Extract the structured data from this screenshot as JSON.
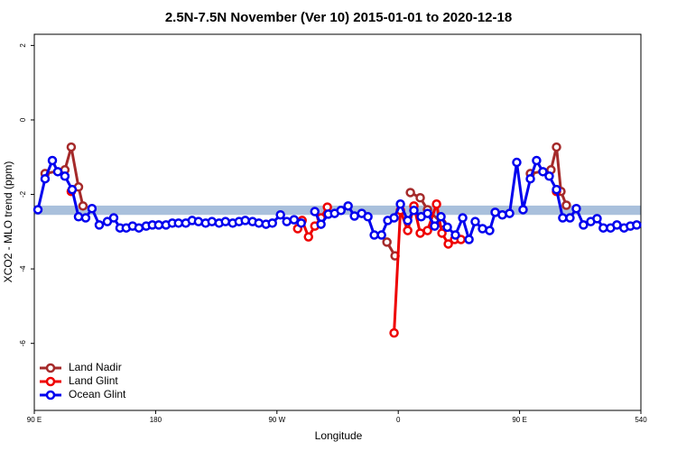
{
  "chart_data": {
    "type": "line",
    "title": "2.5N-7.5N November (Ver 10)   2015-01-01 to 2020-12-18",
    "x_label": "Longitude",
    "y_label": "XCO2 - MLO trend (ppm)",
    "xlim": [
      90,
      540
    ],
    "ylim": [
      -7.8,
      2.3
    ],
    "xticks": [
      {
        "value": 90,
        "label": "90 E"
      },
      180,
      {
        "value": 270,
        "label": "90 W"
      },
      {
        "value": 360,
        "label": "0"
      },
      {
        "value": 450,
        "label": "90 E"
      },
      540
    ],
    "yticks": [
      2,
      0,
      -2,
      -4,
      -6
    ],
    "band": {
      "range": [
        -2.55,
        -2.3
      ],
      "color": "#a9c0dc"
    },
    "legend": "bottom-left",
    "series": [
      {
        "name": "Land Nadir",
        "color": "#a52a2a",
        "x": [
          98,
          112.7,
          117.4,
          122.8,
          126.1,
          300,
          351.6,
          357.6,
          362,
          369,
          376.3,
          381.7,
          392.4,
          440,
          458,
          473.3,
          477.4,
          480.7,
          484.7
        ],
        "values": [
          -1.44,
          -1.34,
          -0.73,
          -1.8,
          -2.31,
          null,
          -3.28,
          -3.65,
          null,
          -1.95,
          -2.09,
          -2.41,
          -2.77,
          null,
          -1.44,
          -1.34,
          -0.73,
          -1.92,
          -2.29
        ]
      },
      {
        "name": "Land Glint",
        "color": "#ee0000",
        "x": [
          117.4,
          200,
          285.4,
          288.7,
          293.4,
          298.1,
          302.7,
          307.4,
          330,
          356.9,
          361.6,
          367,
          371.6,
          376.3,
          381.7,
          388.4,
          392.4,
          397.1,
          401.8,
          406.5,
          440,
          477.4
        ],
        "values": [
          -1.92,
          null,
          -2.92,
          -2.7,
          -3.14,
          -2.85,
          -2.63,
          -2.34,
          null,
          -5.72,
          -2.43,
          -2.97,
          -2.31,
          -3.04,
          -2.97,
          -2.26,
          -3.04,
          -3.33,
          -3.21,
          -3.21,
          null,
          -1.92
        ]
      },
      {
        "name": "Ocean Glint",
        "color": "#0000ee",
        "x": [
          92.7,
          98,
          103.4,
          107.4,
          112.7,
          118.1,
          122.8,
          128.1,
          132.8,
          138.2,
          144.2,
          148.9,
          153.6,
          158.2,
          162.9,
          167.6,
          173,
          177.6,
          182.3,
          187.7,
          192.4,
          197,
          202.4,
          207.1,
          211.8,
          217.1,
          221.8,
          227.1,
          231.8,
          237.2,
          241.9,
          246.5,
          251.9,
          256.6,
          261.9,
          266.6,
          272.6,
          277.3,
          282.7,
          288,
          293,
          298.1,
          302.7,
          308.1,
          312.8,
          317.5,
          322.8,
          327.5,
          332.9,
          337.5,
          342.2,
          347.6,
          352.2,
          356.9,
          361.6,
          367,
          371.6,
          377,
          381.7,
          387,
          391.7,
          396.4,
          402.4,
          407.8,
          412.5,
          417.1,
          422.5,
          427.8,
          431.9,
          437.2,
          442.6,
          447.9,
          452.6,
          458,
          462.6,
          467.3,
          472,
          477.4,
          482,
          487.4,
          492.1,
          497.4,
          502.8,
          507.5,
          512.1,
          517.5,
          522.2,
          527.5,
          532.2,
          536.9
        ],
        "values": [
          -2.41,
          -1.58,
          -1.09,
          -1.39,
          -1.51,
          -1.87,
          -2.6,
          -2.63,
          -2.38,
          -2.82,
          -2.73,
          -2.63,
          -2.9,
          -2.9,
          -2.85,
          -2.9,
          -2.85,
          -2.82,
          -2.82,
          -2.82,
          -2.77,
          -2.77,
          -2.77,
          -2.7,
          -2.73,
          -2.77,
          -2.73,
          -2.77,
          -2.73,
          -2.77,
          -2.73,
          -2.7,
          -2.73,
          -2.77,
          -2.8,
          -2.77,
          -2.55,
          -2.73,
          -2.68,
          -2.77,
          null,
          -2.46,
          -2.8,
          -2.53,
          -2.51,
          -2.43,
          -2.31,
          -2.58,
          -2.51,
          -2.6,
          -3.09,
          -3.09,
          -2.7,
          -2.63,
          -2.26,
          -2.7,
          -2.43,
          -2.6,
          -2.51,
          -2.85,
          -2.6,
          -2.88,
          -3.09,
          -2.63,
          -3.21,
          -2.73,
          -2.92,
          -2.97,
          -2.48,
          -2.55,
          -2.51,
          -1.14,
          -2.41,
          -1.58,
          -1.09,
          -1.39,
          -1.51,
          -1.87,
          -2.63,
          -2.63,
          -2.38,
          -2.82,
          -2.73,
          -2.65,
          -2.9,
          -2.9,
          -2.82,
          -2.9,
          -2.85,
          -2.82
        ]
      }
    ]
  }
}
